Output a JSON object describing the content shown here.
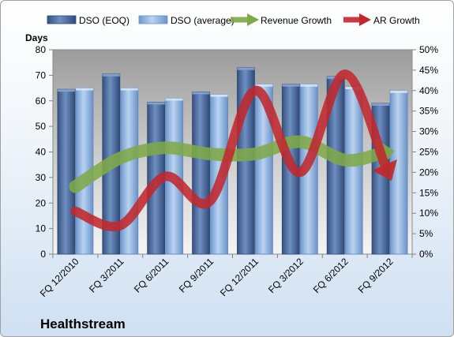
{
  "chart_data": {
    "type": "bar",
    "title": "Healthstream",
    "ylabel": "Days",
    "ylim": [
      0,
      80
    ],
    "y2lim": [
      0,
      0.5
    ],
    "yticks": [
      0,
      10,
      20,
      30,
      40,
      50,
      60,
      70,
      80
    ],
    "y2ticks": [
      "0%",
      "5%",
      "10%",
      "15%",
      "20%",
      "25%",
      "30%",
      "35%",
      "40%",
      "45%",
      "50%"
    ],
    "categories": [
      "FQ 12/2010",
      "FQ 3/2011",
      "FQ 6/2011",
      "FQ 9/2011",
      "FQ 12/2011",
      "FQ 3/2012",
      "FQ 6/2012",
      "FQ 9/2012"
    ],
    "grid": false,
    "legend": "top",
    "series": [
      {
        "name": "DSO (EOQ)",
        "type": "bar",
        "axis": "left",
        "color": "#4f6fa3",
        "values": [
          64.5,
          70.5,
          59.5,
          63.5,
          73,
          66.5,
          69.5,
          59
        ]
      },
      {
        "name": "DSO (average)",
        "type": "bar",
        "axis": "left",
        "color": "#8fb4e0",
        "values": [
          65,
          65,
          61,
          62.5,
          66.5,
          66.5,
          65.5,
          64
        ]
      },
      {
        "name": "Revenue Growth",
        "type": "line",
        "axis": "right",
        "color": "#7fa84a",
        "values": [
          0.165,
          0.235,
          0.26,
          0.245,
          0.245,
          0.275,
          0.23,
          0.25
        ]
      },
      {
        "name": "AR Growth",
        "type": "line",
        "axis": "right",
        "color": "#c0282d",
        "values": [
          0.105,
          0.07,
          0.19,
          0.13,
          0.4,
          0.2,
          0.44,
          0.19
        ]
      }
    ]
  }
}
